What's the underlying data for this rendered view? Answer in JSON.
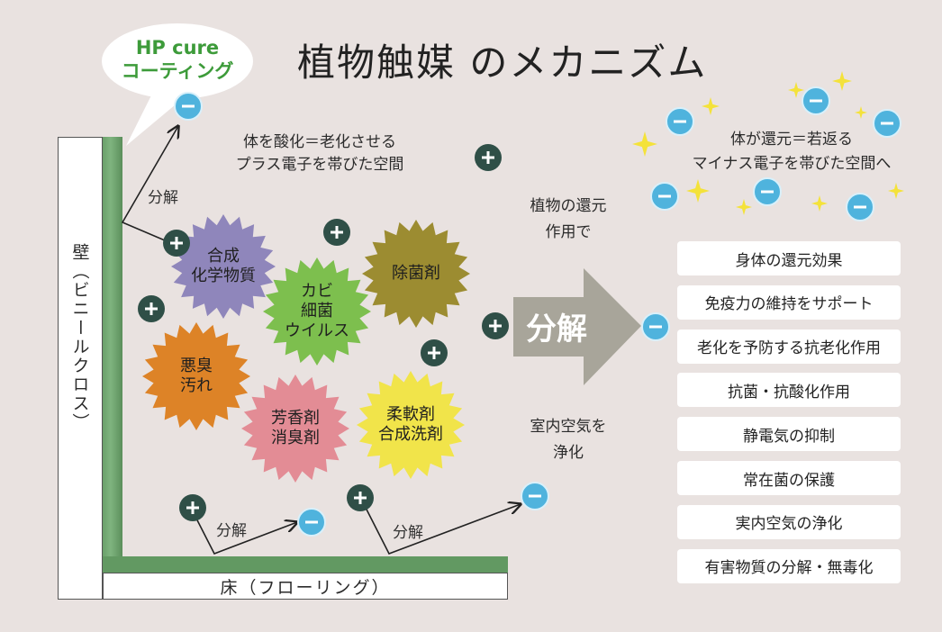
{
  "title": "植物触媒 のメカニズム",
  "bubble": {
    "line1": "HP cure",
    "line2": "コーティング"
  },
  "wall_label": "壁（ビニールクロス）",
  "floor_label": "床（フローリング）",
  "oxidation_note": {
    "line1": "体を酸化＝老化させる",
    "line2": "プラス電子を帯びた空間"
  },
  "reduction_note": {
    "line1": "体が還元＝若返る",
    "line2": "マイナス電子を帯びた空間へ"
  },
  "plant_note": {
    "line1": "植物の還元",
    "line2": "作用で"
  },
  "air_note": {
    "line1": "室内空気を",
    "line2": "浄化"
  },
  "decompose_label": "分解",
  "big_arrow_label": "分解",
  "pollutants": [
    {
      "line1": "合成",
      "line2": "化学物質",
      "color": "#8f86bb"
    },
    {
      "line1": "カビ",
      "line2": "細菌",
      "line3": "ウイルス",
      "color": "#7dbf4e"
    },
    {
      "line1": "除菌剤",
      "color": "#9c8c31"
    },
    {
      "line1": "悪臭",
      "line2": "汚れ",
      "color": "#dd8327"
    },
    {
      "line1": "芳香剤",
      "line2": "消臭剤",
      "color": "#e38c95"
    },
    {
      "line1": "柔軟剤",
      "line2": "合成洗剤",
      "color": "#f1e44a"
    }
  ],
  "effects": [
    "身体の還元効果",
    "免疫力の維持をサポート",
    "老化を予防する抗老化作用",
    "抗菌・抗酸化作用",
    "静電気の抑制",
    "常在菌の保護",
    "実内空気の浄化",
    "有害物質の分解・無毒化"
  ],
  "colors": {
    "plus": "#2f4f47",
    "minus": "#4fb3dd",
    "green": "#3d9b3a",
    "arrow": "#a8a59a",
    "star": "#f4e23a"
  }
}
